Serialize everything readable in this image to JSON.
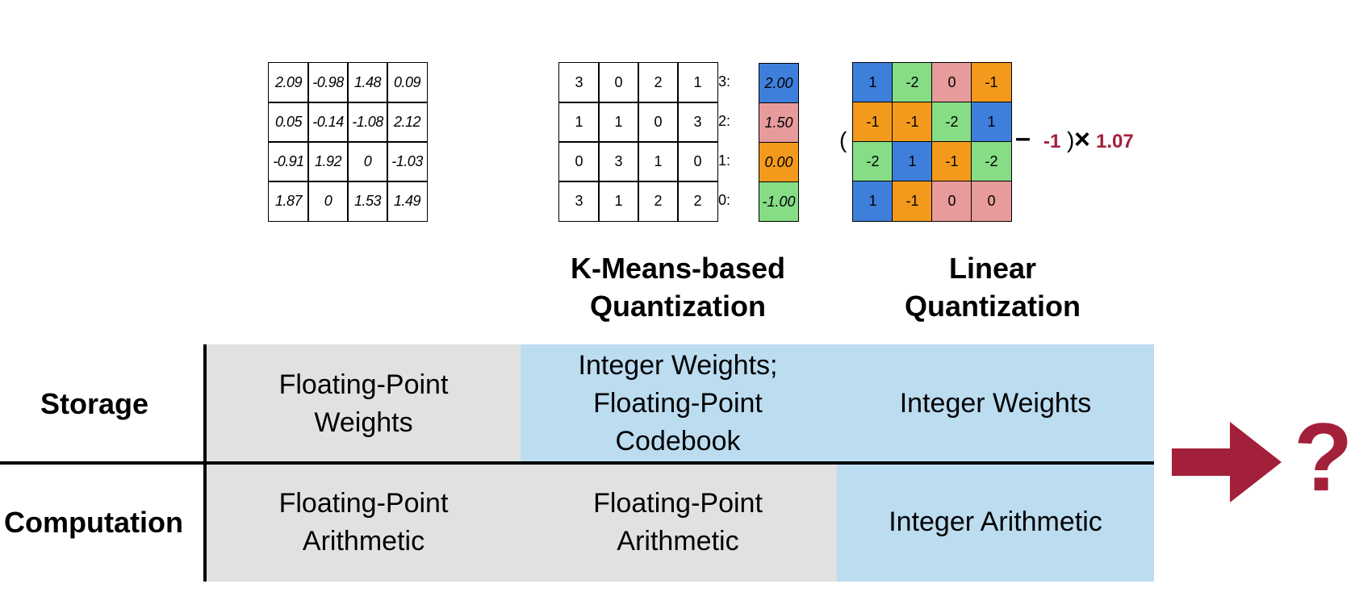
{
  "original_matrix": {
    "rows": [
      [
        "2.09",
        "-0.98",
        "1.48",
        "0.09"
      ],
      [
        "0.05",
        "-0.14",
        "-1.08",
        "2.12"
      ],
      [
        "-0.91",
        "1.92",
        "0",
        "-1.03"
      ],
      [
        "1.87",
        "0",
        "1.53",
        "1.49"
      ]
    ]
  },
  "kmeans": {
    "indices": [
      [
        "3",
        "0",
        "2",
        "1"
      ],
      [
        "1",
        "1",
        "0",
        "3"
      ],
      [
        "0",
        "3",
        "1",
        "0"
      ],
      [
        "3",
        "1",
        "2",
        "2"
      ]
    ],
    "codebook": [
      {
        "label": "3:",
        "value": "2.00",
        "color": "#3f7fdc"
      },
      {
        "label": "2:",
        "value": "1.50",
        "color": "#e89b9b"
      },
      {
        "label": "1:",
        "value": "0.00",
        "color": "#f39a1c"
      },
      {
        "label": "0:",
        "value": "-1.00",
        "color": "#86dd86"
      }
    ],
    "heading_line1": "K-Means-based",
    "heading_line2": "Quantization"
  },
  "linear": {
    "matrix": [
      [
        "1",
        "-2",
        "0",
        "-1"
      ],
      [
        "-1",
        "-1",
        "-2",
        "1"
      ],
      [
        "-2",
        "1",
        "-1",
        "-2"
      ],
      [
        "1",
        "-1",
        "0",
        "0"
      ]
    ],
    "value_colors": {
      "1": "#3f7fdc",
      "-2": "#86dd86",
      "0": "#e89b9b",
      "-1": "#f39a1c"
    },
    "open_paren": "(",
    "minus": "–",
    "zero_point": "-1",
    "close_paren": ")",
    "times": "×",
    "scale": "1.07",
    "accent_color": "#a3203a",
    "heading_line1": "Linear",
    "heading_line2": "Quantization"
  },
  "table": {
    "rows": [
      {
        "header": "Storage",
        "cells": [
          "Floating-Point\nWeights",
          "Integer Weights;\nFloating-Point\nCodebook",
          "Integer Weights"
        ]
      },
      {
        "header": "Computation",
        "cells": [
          "Floating-Point\nArithmetic",
          "Floating-Point\nArithmetic",
          "Integer Arithmetic"
        ]
      }
    ],
    "gray": "#e1e1e1",
    "blue": "#bcdcf0"
  },
  "next": {
    "symbol": "?",
    "color": "#a3203a"
  }
}
